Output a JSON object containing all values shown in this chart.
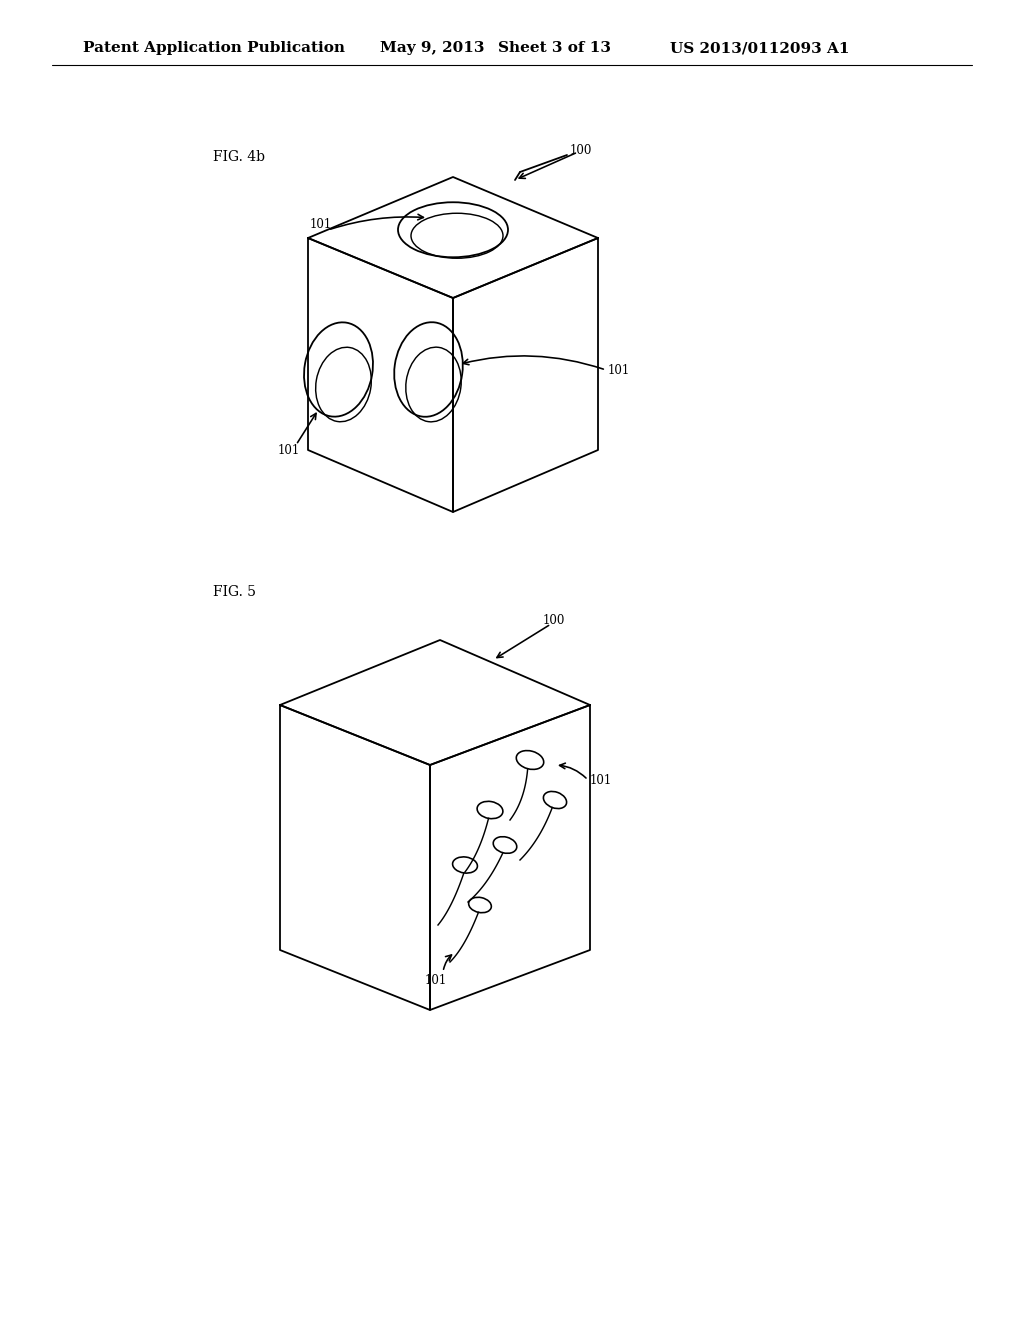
{
  "background_color": "#ffffff",
  "header_text": "Patent Application Publication",
  "header_date": "May 9, 2013",
  "header_sheet": "Sheet 3 of 13",
  "header_patent": "US 2013/0112093 A1",
  "fig4b_label": "FIG. 4b",
  "fig5_label": "FIG. 5",
  "label_100": "100",
  "label_101": "101",
  "line_color": "#000000",
  "line_width": 1.3,
  "font_size_header": 11,
  "font_size_label": 10,
  "font_size_ref": 8.5
}
